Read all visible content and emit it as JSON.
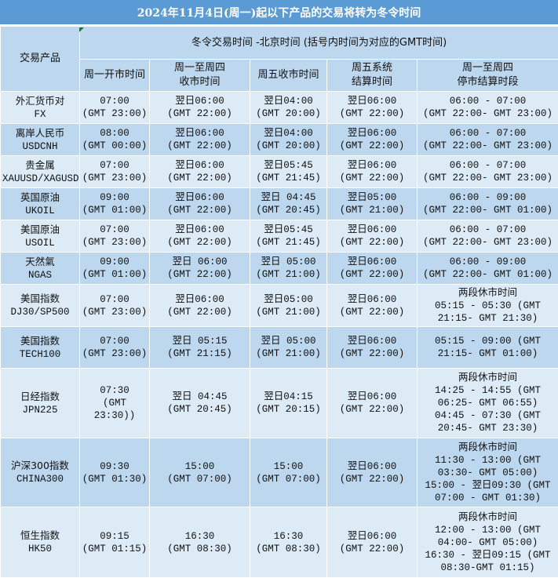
{
  "title": "2024年11月4日(周一)起以下产品的交易将转为冬令时间",
  "header": {
    "product_col": "交易产品",
    "group_label": "冬令交易时间 -北京时间 (括号内时间为对应的GMT时间)",
    "columns": [
      "周一开市时间",
      "周一至周四\n收市时间",
      "周五收市时间",
      "周五系统\n结算时间",
      "周一至周四\n停市结算时段"
    ]
  },
  "rows": [
    {
      "name": "外汇货币对",
      "code": "FX",
      "cells": [
        "07:00\n(GMT 23:00)",
        "翌日06:00\n(GMT 22:00)",
        "翌日04:00\n(GMT 20:00)",
        "翌日06:00\n(GMT 22:00)",
        "06:00 - 07:00\n(GMT 22:00- GMT 23:00)"
      ]
    },
    {
      "name": "离岸人民币",
      "code": "USDCNH",
      "cells": [
        "08:00\n(GMT 00:00)",
        "翌日06:00\n(GMT 22:00)",
        "翌日04:00\n(GMT 20:00)",
        "翌日06:00\n(GMT 22:00)",
        "06:00 - 07:00\n(GMT 22:00- GMT 23:00)"
      ]
    },
    {
      "name": "贵金属",
      "code": "XAUUSD/XAGUSD",
      "cells": [
        "07:00\n(GMT 23:00)",
        "翌日06:00\n(GMT 22:00)",
        "翌日05:45\n(GMT 21:45)",
        "翌日06:00\n(GMT 22:00)",
        "06:00 - 07:00\n(GMT 22:00- GMT 23:00)"
      ]
    },
    {
      "name": "英国原油",
      "code": "UKOIL",
      "cells": [
        "09:00\n(GMT 01:00)",
        "翌日06:00\n(GMT 22:00)",
        "翌日 04:45\n(GMT 20:45)",
        "翌日05:00\n(GMT 21:00)",
        "06:00 - 09:00\n(GMT 22:00- GMT 01:00)"
      ]
    },
    {
      "name": "美国原油",
      "code": "USOIL",
      "cells": [
        "07:00\n(GMT 23:00)",
        "翌日06:00\n(GMT 22:00)",
        "翌日05:45\n(GMT 21:45)",
        "翌日06:00\n(GMT 22:00)",
        "06:00 - 07:00\n(GMT 22:00- GMT 23:00)"
      ]
    },
    {
      "name": "天然氣",
      "code": "NGAS",
      "cells": [
        "09:00\n(GMT 01:00)",
        "翌日 06:00\n(GMT 22:00)",
        "翌日 05:00\n(GMT 21:00)",
        "翌日06:00\n(GMT 22:00)",
        "06:00 - 09:00\n(GMT 22:00- GMT 01:00)"
      ]
    },
    {
      "name": "美国指数",
      "code": "DJ30/SP500",
      "cells": [
        "07:00\n(GMT 23:00)",
        "翌日06:00\n(GMT 22:00)",
        "翌日05:00\n(GMT 21:00)",
        "翌日06:00\n(GMT 22:00)",
        "两段休市时间\n05:15 - 05:30 (GMT\n21:15- GMT 21:30)"
      ]
    },
    {
      "name": "美国指数",
      "code": "TECH100",
      "cells": [
        "07:00\n(GMT 23:00)",
        "翌日 05:15\n(GMT 21:15)",
        "翌日 05:00\n(GMT 21:00)",
        "翌日06:00\n(GMT 22:00)",
        "05:15 - 09:00 (GMT\n21:15- GMT 01:00)"
      ]
    },
    {
      "name": "日经指数",
      "code": "JPN225",
      "cells": [
        "07:30\n(GMT 23:30))",
        "翌日 04:45\n(GMT 20:45)",
        "翌日04:15\n(GMT 20:15)",
        "翌日06:00\n(GMT 22:00)",
        "两段休市时间\n14:25 - 14:55 (GMT\n06:25- GMT 06:55)\n04:45 - 07:30 (GMT\n20:45- GMT 23:30)"
      ]
    },
    {
      "name": "沪深300指数",
      "code": "CHINA300",
      "cells": [
        "09:30\n(GMT 01:30)",
        "15:00\n(GMT 07:00)",
        "15:00\n(GMT 07:00)",
        "翌日06:00\n(GMT 22:00)",
        "两段休市时间\n11:30 - 13:00 (GMT\n03:30- GMT 05:00)\n15:00 - 翌日09:30 (GMT\n07:00 - GMT 01:30)"
      ]
    },
    {
      "name": "恒生指数",
      "code": "HK50",
      "cells": [
        "09:15\n(GMT 01:15)",
        "16:30\n(GMT 08:30)",
        "16:30\n(GMT 08:30)",
        "翌日06:00\n(GMT 22:00)",
        "两段休市时间\n12:00 - 13:00 (GMT\n04:00- GMT 05:00)\n16:30 - 翌日09:15 (GMT\n08:30-GMT 01:15)"
      ]
    }
  ],
  "colors": {
    "title_bg": "#5b9bd5",
    "header_bg": "#bdd7ee",
    "row_light": "#ddebf7",
    "row_dark": "#bdd7ee"
  }
}
